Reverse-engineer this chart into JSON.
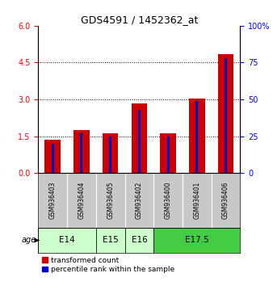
{
  "title": "GDS4591 / 1452362_at",
  "samples": [
    "GSM936403",
    "GSM936404",
    "GSM936405",
    "GSM936402",
    "GSM936400",
    "GSM936401",
    "GSM936406"
  ],
  "transformed_counts": [
    1.35,
    1.75,
    1.62,
    2.85,
    1.62,
    3.02,
    4.85
  ],
  "percentile_ranks": [
    20,
    27,
    25,
    43,
    25,
    49,
    78
  ],
  "age_groups": [
    {
      "label": "E14",
      "start": 0,
      "end": 2,
      "color": "#ccffcc"
    },
    {
      "label": "E15",
      "start": 2,
      "end": 3,
      "color": "#ccffcc"
    },
    {
      "label": "E16",
      "start": 3,
      "end": 4,
      "color": "#ccffcc"
    },
    {
      "label": "E17.5",
      "start": 4,
      "end": 7,
      "color": "#44cc44"
    }
  ],
  "sample_bg_color": "#c8c8c8",
  "left_ylim": [
    0,
    6
  ],
  "right_ylim": [
    0,
    100
  ],
  "left_yticks": [
    0,
    1.5,
    3,
    4.5,
    6
  ],
  "right_ytick_vals": [
    0,
    25,
    50,
    75,
    100
  ],
  "right_ytick_labels": [
    "0",
    "25",
    "50",
    "75",
    "100%"
  ],
  "bar_color": "#cc0000",
  "percentile_color": "#0000cc",
  "bar_width": 0.55,
  "blue_bar_width": 0.08,
  "legend_labels": [
    "transformed count",
    "percentile rank within the sample"
  ],
  "age_label": "age",
  "grid_color": "black",
  "title_fontsize": 9,
  "tick_fontsize": 7,
  "sample_fontsize": 5.5,
  "age_fontsize": 7.5,
  "legend_fontsize": 6.5
}
